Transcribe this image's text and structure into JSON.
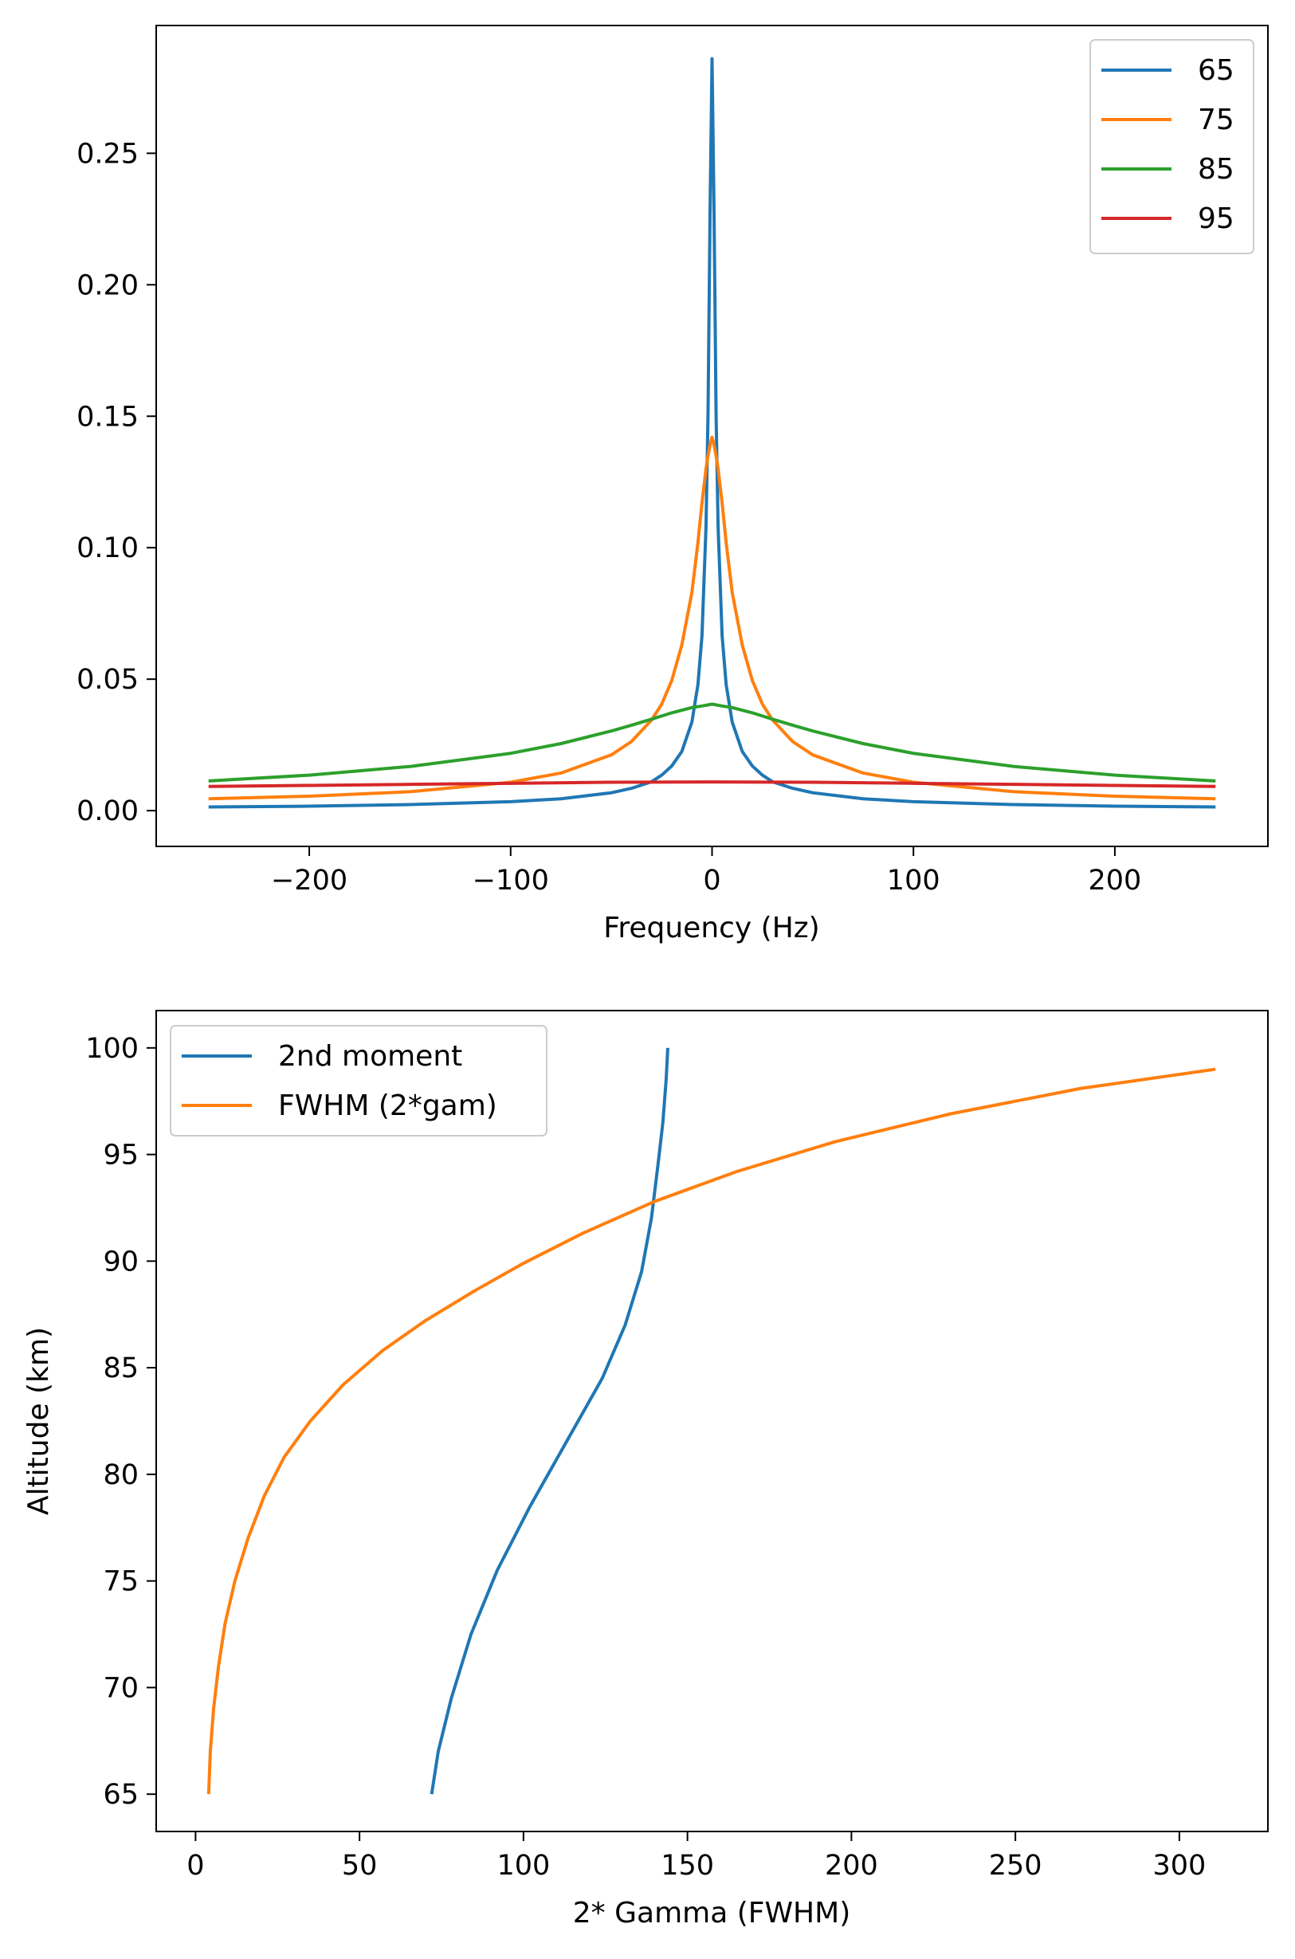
{
  "chart_data": [
    {
      "type": "line",
      "xlabel": "Frequency (Hz)",
      "ylabel": "",
      "xlim": [
        -276,
        276
      ],
      "ylim": [
        -0.0136,
        0.2986
      ],
      "xticks": [
        -200,
        -100,
        0,
        100,
        200
      ],
      "xtick_labels": [
        "−200",
        "−100",
        "0",
        "100",
        "200"
      ],
      "yticks": [
        0.0,
        0.05,
        0.1,
        0.15,
        0.2,
        0.25
      ],
      "ytick_labels": [
        "0.00",
        "0.05",
        "0.10",
        "0.15",
        "0.20",
        "0.25"
      ],
      "grid": false,
      "legend_position": "top-right",
      "x_range": [
        -250,
        250
      ],
      "series": [
        {
          "name": "65",
          "color": "#1f77b4",
          "x": [
            -250,
            -200,
            -150,
            -100,
            -75,
            -50,
            -40,
            -30,
            -25,
            -20,
            -15,
            -10,
            -7,
            -5,
            -3,
            -2,
            -1,
            0,
            1,
            2,
            3,
            5,
            7,
            10,
            15,
            20,
            25,
            30,
            40,
            50,
            75,
            100,
            150,
            200,
            250
          ],
          "values": [
            0.0014,
            0.0017,
            0.0023,
            0.0034,
            0.0045,
            0.0068,
            0.0085,
            0.011,
            0.0135,
            0.017,
            0.0225,
            0.0337,
            0.048,
            0.0665,
            0.108,
            0.151,
            0.227,
            0.286,
            0.227,
            0.151,
            0.108,
            0.0665,
            0.048,
            0.0337,
            0.0225,
            0.017,
            0.0135,
            0.011,
            0.0085,
            0.0068,
            0.0045,
            0.0034,
            0.0023,
            0.0017,
            0.0014
          ]
        },
        {
          "name": "75",
          "color": "#ff7f0e",
          "x": [
            -250,
            -200,
            -150,
            -100,
            -75,
            -50,
            -40,
            -30,
            -25,
            -20,
            -15,
            -10,
            -7,
            -5,
            -3,
            -2,
            -1,
            0,
            1,
            2,
            3,
            5,
            7,
            10,
            15,
            20,
            25,
            30,
            40,
            50,
            75,
            100,
            150,
            200,
            250
          ],
          "values": [
            0.0045,
            0.0055,
            0.0072,
            0.0108,
            0.0143,
            0.0212,
            0.0263,
            0.0345,
            0.0405,
            0.0495,
            0.063,
            0.083,
            0.102,
            0.117,
            0.13,
            0.135,
            0.139,
            0.142,
            0.139,
            0.135,
            0.13,
            0.117,
            0.102,
            0.083,
            0.063,
            0.0495,
            0.0405,
            0.0345,
            0.0263,
            0.0212,
            0.0143,
            0.0108,
            0.0072,
            0.0055,
            0.0045
          ]
        },
        {
          "name": "85",
          "color": "#2ca02c",
          "x": [
            -250,
            -200,
            -150,
            -100,
            -75,
            -50,
            -40,
            -30,
            -20,
            -10,
            -5,
            0,
            5,
            10,
            20,
            30,
            40,
            50,
            75,
            100,
            150,
            200,
            250
          ],
          "values": [
            0.0113,
            0.0135,
            0.0168,
            0.0218,
            0.0255,
            0.0303,
            0.0325,
            0.0348,
            0.0372,
            0.0392,
            0.0398,
            0.0405,
            0.0398,
            0.0392,
            0.0372,
            0.0348,
            0.0325,
            0.0303,
            0.0255,
            0.0218,
            0.0168,
            0.0135,
            0.0113
          ]
        },
        {
          "name": "95",
          "color": "#d62728",
          "x": [
            -250,
            -200,
            -150,
            -100,
            -50,
            0,
            50,
            100,
            150,
            200,
            250
          ],
          "values": [
            0.0092,
            0.0096,
            0.01,
            0.0104,
            0.0108,
            0.0109,
            0.0108,
            0.0104,
            0.01,
            0.0096,
            0.0092
          ]
        }
      ]
    },
    {
      "type": "line",
      "xlabel": "2* Gamma (FWHM)",
      "ylabel": "Altitude (km)",
      "xlim": [
        -12,
        327
      ],
      "ylim": [
        63.25,
        101.75
      ],
      "xticks": [
        0,
        50,
        100,
        150,
        200,
        250,
        300
      ],
      "xtick_labels": [
        "0",
        "50",
        "100",
        "150",
        "200",
        "250",
        "300"
      ],
      "yticks": [
        65,
        70,
        75,
        80,
        85,
        90,
        95,
        100
      ],
      "ytick_labels": [
        "65",
        "70",
        "75",
        "80",
        "85",
        "90",
        "95",
        "100"
      ],
      "grid": false,
      "legend_position": "top-left",
      "series": [
        {
          "name": "2nd moment",
          "color": "#1f77b4",
          "x": [
            72,
            74,
            78,
            84,
            92,
            102,
            113,
            124,
            131,
            136,
            139,
            141,
            142.5,
            143.5,
            144
          ],
          "values": [
            65,
            67,
            69.5,
            72.5,
            75.5,
            78.5,
            81.5,
            84.5,
            87,
            89.5,
            92,
            94.5,
            96.5,
            98.5,
            100
          ]
        },
        {
          "name": "FWHM (2*gam)",
          "color": "#ff7f0e",
          "x": [
            4,
            4.5,
            5.5,
            7,
            9,
            12,
            16,
            21,
            27,
            35,
            45,
            57,
            70,
            85,
            100,
            118,
            140,
            165,
            195,
            230,
            270,
            311
          ],
          "values": [
            65,
            67,
            69,
            71,
            73,
            75,
            77,
            79,
            80.8,
            82.5,
            84.2,
            85.8,
            87.2,
            88.6,
            89.9,
            91.3,
            92.8,
            94.2,
            95.6,
            96.9,
            98.1,
            99
          ]
        }
      ]
    }
  ]
}
